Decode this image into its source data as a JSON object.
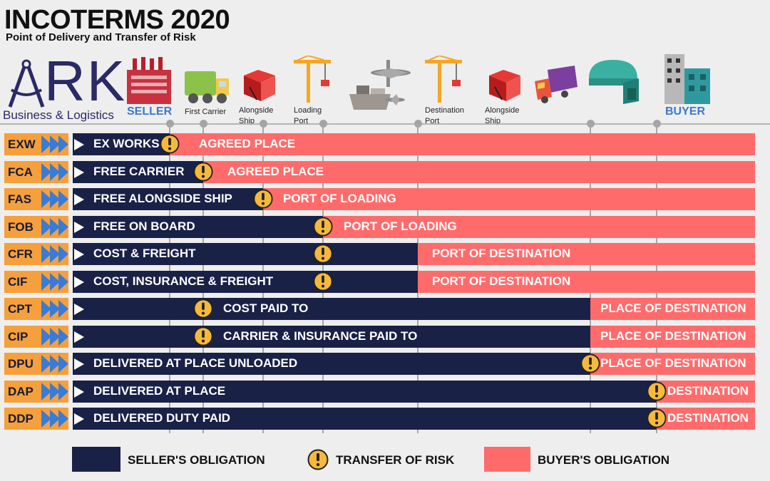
{
  "header": {
    "title": "INCOTERMS 2020",
    "subtitle": "Point of Delivery and Transfer of Risk"
  },
  "logo": {
    "letters": "RK",
    "tagline": "Business & Logistics"
  },
  "stages": [
    {
      "label": "SELLER",
      "icon": "factory-icon"
    },
    {
      "label": "First Carrier",
      "icon": "truck-icon"
    },
    {
      "label": "Alongside Ship",
      "icon": "cargo-box-icon"
    },
    {
      "label": "Loading Port",
      "icon": "port-crane-icon"
    },
    {
      "label": "",
      "icon": "ship-and-plane-icon"
    },
    {
      "label": "Destination Port",
      "icon": "port-crane-icon"
    },
    {
      "label": "Alongside Ship",
      "icon": "cargo-box-icon"
    },
    {
      "label": "",
      "icon": "lorry-icon"
    },
    {
      "label": "",
      "icon": "warehouse-icon"
    },
    {
      "label": "BUYER",
      "icon": "building-icon"
    }
  ],
  "terms": [
    {
      "code": "EXW",
      "seller_text": "EX WORKS",
      "buyer_text": "AGREED PLACE",
      "risk_stage": 0,
      "split_stage": 0
    },
    {
      "code": "FCA",
      "seller_text": "FREE CARRIER",
      "buyer_text": "AGREED PLACE",
      "risk_stage": 1,
      "split_stage": 1
    },
    {
      "code": "FAS",
      "seller_text": "FREE ALONGSIDE SHIP",
      "buyer_text": "PORT OF LOADING",
      "risk_stage": 2,
      "split_stage": 2
    },
    {
      "code": "FOB",
      "seller_text": "FREE ON BOARD",
      "buyer_text": "PORT OF LOADING",
      "risk_stage": 3,
      "split_stage": 3
    },
    {
      "code": "CFR",
      "seller_text": "COST & FREIGHT",
      "buyer_text": "PORT OF DESTINATION",
      "risk_stage": 3,
      "split_stage": 4
    },
    {
      "code": "CIF",
      "seller_text": "COST, INSURANCE & FREIGHT",
      "buyer_text": "PORT OF DESTINATION",
      "risk_stage": 3,
      "split_stage": 4
    },
    {
      "code": "CPT",
      "seller_text": "COST PAID TO",
      "buyer_text": "PLACE OF DESTINATION",
      "risk_stage": 1,
      "split_stage": 5
    },
    {
      "code": "CIP",
      "seller_text": "CARRIER & INSURANCE PAID TO",
      "buyer_text": "PLACE OF DESTINATION",
      "risk_stage": 1,
      "split_stage": 5
    },
    {
      "code": "DPU",
      "seller_text": "DELIVERED AT PLACE UNLOADED",
      "buyer_text": "PLACE OF DESTINATION",
      "risk_stage": 5,
      "split_stage": 5
    },
    {
      "code": "DAP",
      "seller_text": "DELIVERED AT PLACE",
      "buyer_text": "DESTINATION",
      "risk_stage": 6,
      "split_stage": 6
    },
    {
      "code": "DDP",
      "seller_text": "DELIVERED DUTY PAID",
      "buyer_text": "DESTINATION",
      "risk_stage": 6,
      "split_stage": 6
    }
  ],
  "legend": {
    "seller": "SELLER'S OBLIGATION",
    "risk": "TRANSFER OF RISK",
    "buyer": "BUYER'S OBLIGATION"
  },
  "colors": {
    "seller": "#1a2147",
    "buyer": "#ff6b6b",
    "code_badge": "#f5a03c",
    "chevron": "#3a7bd5",
    "warning": "#f6b93b",
    "stage_label": "#3a78c9"
  }
}
